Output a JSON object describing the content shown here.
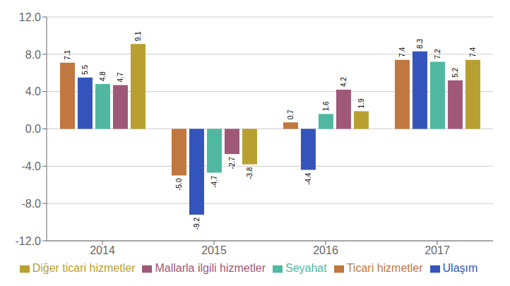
{
  "chart_data": {
    "type": "bar",
    "categories": [
      "2014",
      "2015",
      "2016",
      "2017"
    ],
    "series": [
      {
        "name": "Ticari hizmetler",
        "color": "#C07840",
        "values": [
          7.1,
          -5.0,
          0.7,
          7.4
        ],
        "value_labels": [
          "7.1",
          "-5.0",
          "0.7",
          "7.4"
        ]
      },
      {
        "name": "Ulaşım",
        "color": "#3355BB",
        "values": [
          5.5,
          -9.2,
          -4.4,
          8.3
        ]
      },
      {
        "name": "Seyahat",
        "color": "#50B8A0",
        "values": [
          4.8,
          -4.7,
          1.6,
          7.2
        ]
      },
      {
        "name": "Mallarla ilgili hizmetler",
        "color": "#A05878",
        "values": [
          4.7,
          -2.7,
          4.2,
          5.2
        ]
      },
      {
        "name": "Diğer ticari hizmetler",
        "color": "#B8A030",
        "values": [
          9.1,
          -3.8,
          1.9,
          7.4
        ]
      }
    ],
    "ylim": [
      -12.0,
      12.0
    ],
    "yticks": [
      {
        "value": -12.0,
        "label": "-12.0"
      },
      {
        "value": -8.0,
        "label": "-8.0"
      },
      {
        "value": -4.0,
        "label": "-4.0"
      },
      {
        "value": 0.0,
        "label": "0.0"
      },
      {
        "value": 4.0,
        "label": "4.0"
      },
      {
        "value": 8.0,
        "label": "8.0"
      },
      {
        "value": 12.0,
        "label": "12.0"
      }
    ],
    "grid": true,
    "legend": "bottom",
    "data_labels": true
  }
}
